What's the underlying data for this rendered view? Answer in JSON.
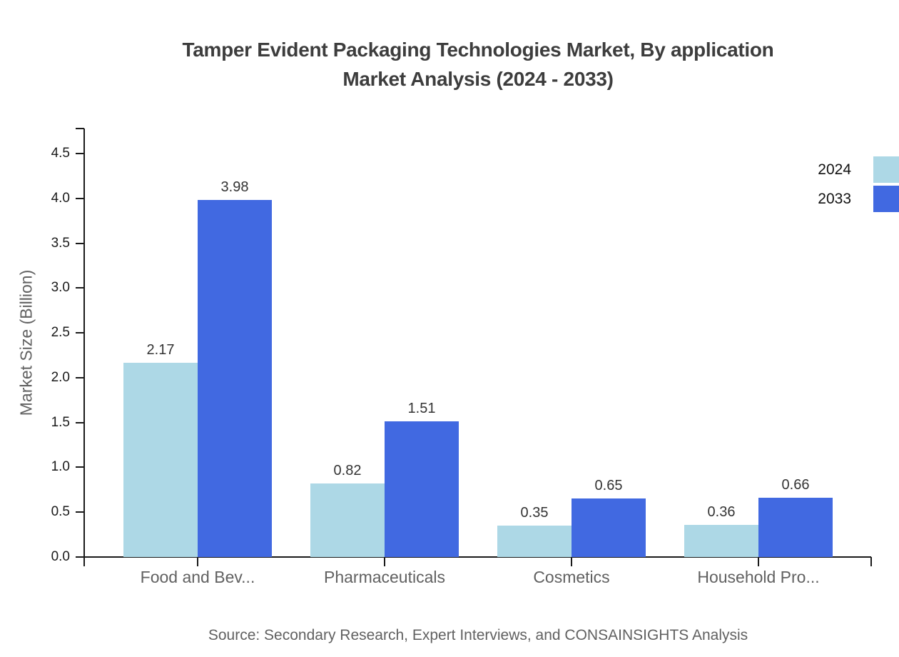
{
  "title": {
    "line1": "Tamper Evident Packaging Technologies Market, By application",
    "line2": "Market Analysis (2024 - 2033)"
  },
  "source": "Source: Secondary Research, Expert Interviews, and CONSAINSIGHTS Analysis",
  "chart_data": {
    "type": "bar",
    "title": "Tamper Evident Packaging Technologies Market, By application Market Analysis (2024 - 2033)",
    "categories": [
      "Food and Bev...",
      "Pharmaceuticals",
      "Cosmetics",
      "Household Pro..."
    ],
    "series": [
      {
        "name": "2024",
        "color": "#ADD8E6",
        "values": [
          2.17,
          0.82,
          0.35,
          0.36
        ]
      },
      {
        "name": "2033",
        "color": "#4169E1",
        "values": [
          3.98,
          1.51,
          0.65,
          0.66
        ]
      }
    ],
    "xlabel": "",
    "ylabel": "Market Size (Billion)",
    "ylim": [
      0,
      4.78
    ],
    "yticks": [
      "0.0",
      "0.5",
      "1.0",
      "1.5",
      "2.0",
      "2.5",
      "3.0",
      "3.5",
      "4.0",
      "4.5"
    ],
    "legend_position": "top-right",
    "grid": false
  },
  "colors": {
    "axis": "#1a1a1a",
    "title_text": "#3d3d3d",
    "muted_text": "#616161",
    "value_text": "#333333",
    "background": "#ffffff"
  }
}
